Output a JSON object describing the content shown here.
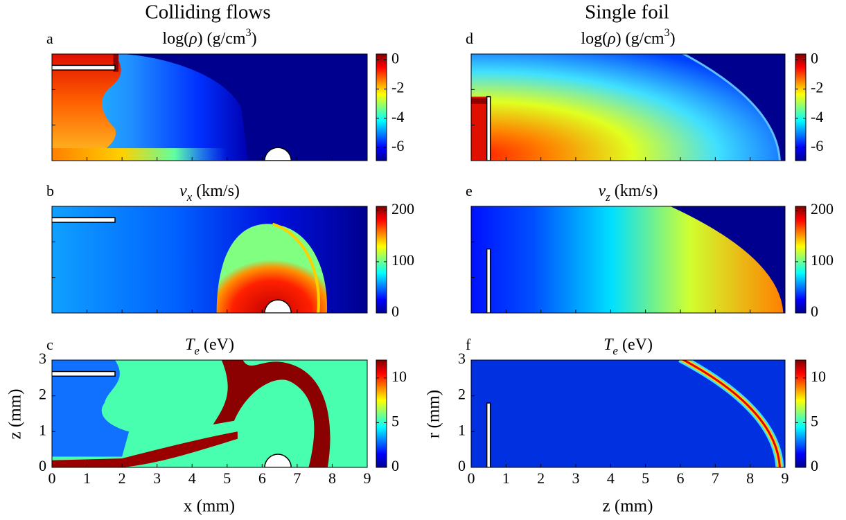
{
  "figure": {
    "columns": [
      "Colliding flows",
      "Single foil"
    ],
    "x_labels": [
      "x (mm)",
      "z (mm)"
    ],
    "y_labels": [
      "z (mm)",
      "r (mm)"
    ],
    "xlim": [
      0,
      9
    ],
    "xticks": [
      0,
      1,
      2,
      3,
      4,
      5,
      6,
      7,
      8,
      9
    ],
    "ylim": [
      0,
      3
    ],
    "yticks": [
      0,
      1,
      2,
      3
    ],
    "panels": [
      {
        "label": "a",
        "title": [
          {
            "text": "log("
          },
          {
            "text": "ρ",
            "italic": true
          },
          {
            "text": ") (g/cm"
          },
          {
            "text": "3",
            "sup": true
          },
          {
            "text": ")"
          }
        ],
        "clim": [
          -6.9,
          0.4
        ],
        "cticks": [
          0,
          -2,
          -4,
          -6
        ]
      },
      {
        "label": "b",
        "title": [
          {
            "text": "v",
            "italic": true
          },
          {
            "text": "x",
            "italic": true,
            "sub": true
          },
          {
            "text": " (km/s)"
          }
        ],
        "clim": [
          0,
          208
        ],
        "cticks": [
          0,
          100,
          200
        ]
      },
      {
        "label": "c",
        "title": [
          {
            "text": "T",
            "italic": true
          },
          {
            "text": "e",
            "italic": true,
            "sub": true
          },
          {
            "text": " (eV)"
          }
        ],
        "clim": [
          0,
          12
        ],
        "cticks": [
          0,
          5,
          10
        ]
      },
      {
        "label": "d",
        "title": [
          {
            "text": "log("
          },
          {
            "text": "ρ",
            "italic": true
          },
          {
            "text": ") (g/cm"
          },
          {
            "text": "3",
            "sup": true
          },
          {
            "text": ")"
          }
        ],
        "clim": [
          -6.9,
          0.4
        ],
        "cticks": [
          0,
          -2,
          -4,
          -6
        ]
      },
      {
        "label": "e",
        "title": [
          {
            "text": "v",
            "italic": true
          },
          {
            "text": "z",
            "italic": true,
            "sub": true
          },
          {
            "text": " (km/s)"
          }
        ],
        "clim": [
          0,
          208
        ],
        "cticks": [
          0,
          100,
          200
        ]
      },
      {
        "label": "f",
        "title": [
          {
            "text": "T",
            "italic": true
          },
          {
            "text": "e",
            "italic": true,
            "sub": true
          },
          {
            "text": " (eV)"
          }
        ],
        "clim": [
          0,
          12
        ],
        "cticks": [
          0,
          5,
          10
        ]
      }
    ]
  }
}
